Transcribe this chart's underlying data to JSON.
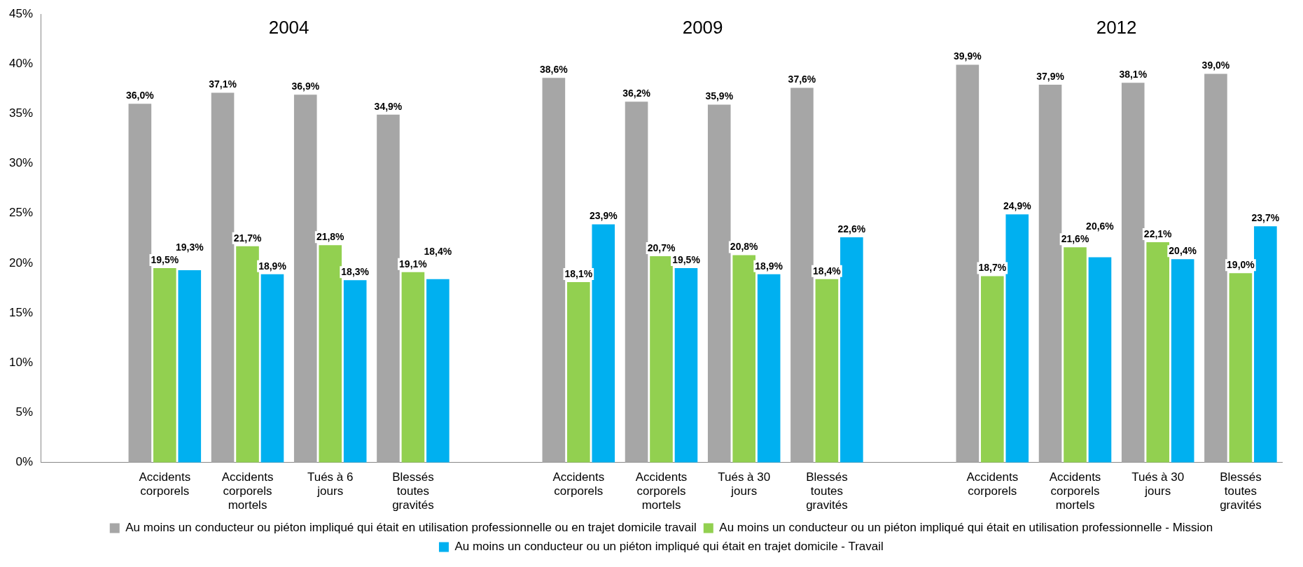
{
  "chart_data": {
    "type": "bar",
    "categories": [
      null,
      "Accidents corporels",
      "Accidents corporels mortels",
      "Tués à 6 jours",
      "Blessés toutes gravités",
      null,
      "Accidents corporels",
      "Accidents corporels mortels",
      "Tués à 30 jours",
      "Blessés toutes gravités",
      null,
      "Accidents corporels",
      "Accidents corporels mortels",
      "Tués à 30 jours",
      "Blessés toutes gravités"
    ],
    "series": [
      {
        "name": "Au moins un conducteur ou piéton impliqué qui était en utilisation professionnelle ou en trajet domicile travail",
        "color": "#a6a6a6",
        "values": [
          null,
          36.0,
          37.1,
          36.9,
          34.9,
          null,
          38.6,
          36.2,
          35.9,
          37.6,
          null,
          39.9,
          37.9,
          38.1,
          39.0
        ],
        "value_labels": [
          null,
          "36,0%",
          "37,1%",
          "36,9%",
          "34,9%",
          null,
          "38,6%",
          "36,2%",
          "35,9%",
          "37,6%",
          null,
          "39,9%",
          "37,9%",
          "38,1%",
          "39,0%"
        ]
      },
      {
        "name": "Au moins un conducteur ou un piéton impliqué qui était en utilisation professionnelle - Mission",
        "color": "#92d050",
        "values": [
          null,
          19.5,
          21.7,
          21.8,
          19.1,
          null,
          18.1,
          20.7,
          20.8,
          18.4,
          null,
          18.7,
          21.6,
          22.1,
          19.0
        ],
        "value_labels": [
          null,
          "19,5%",
          "21,7%",
          "21,8%",
          "19,1%",
          null,
          "18,1%",
          "20,7%",
          "20,8%",
          "18,4%",
          null,
          "18,7%",
          "21,6%",
          "22,1%",
          "19,0%"
        ]
      },
      {
        "name": "Au moins un conducteur ou un piéton impliqué qui était en trajet domicile - Travail",
        "color": "#00b0f0",
        "values": [
          null,
          19.3,
          18.9,
          18.3,
          18.4,
          null,
          23.9,
          19.5,
          18.9,
          22.6,
          null,
          24.9,
          20.6,
          20.4,
          23.7
        ],
        "value_labels": [
          null,
          "19,3%",
          "18,9%",
          "18,3%",
          "18,4%",
          null,
          "23,9%",
          "19,5%",
          "18,9%",
          "22,6%",
          null,
          "24,9%",
          "20,6%",
          "20,4%",
          "23,7%"
        ]
      }
    ],
    "annotations": [
      "2004",
      "2009",
      "2012"
    ],
    "ylim": [
      0,
      45
    ],
    "yticks": [
      {
        "value": 0,
        "label": "0%"
      },
      {
        "value": 5,
        "label": "5%"
      },
      {
        "value": 10,
        "label": "10%"
      },
      {
        "value": 15,
        "label": "15%"
      },
      {
        "value": 20,
        "label": "20%"
      },
      {
        "value": 25,
        "label": "25%"
      },
      {
        "value": 30,
        "label": "30%"
      },
      {
        "value": 35,
        "label": "35%"
      },
      {
        "value": 40,
        "label": "40%"
      },
      {
        "value": 45,
        "label": "45%"
      }
    ],
    "grid": false,
    "legend": "bottom"
  }
}
